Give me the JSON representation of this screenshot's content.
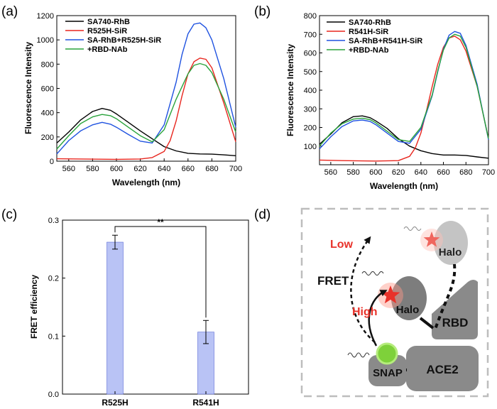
{
  "panel_labels": [
    "(a)",
    "(b)",
    "(c)",
    "(d)"
  ],
  "chart_data": [
    {
      "id": "a",
      "type": "line",
      "xlabel": "Wavelength (nm)",
      "ylabel": "Fluorescence Intensity",
      "xlim": [
        550,
        700
      ],
      "ylim": [
        0,
        1200
      ],
      "xticks": [
        560,
        580,
        600,
        620,
        640,
        660,
        680,
        700
      ],
      "yticks": [
        0,
        200,
        400,
        600,
        800,
        1000,
        1200
      ],
      "series": [
        {
          "name": "SA740-RhB",
          "color": "#000000",
          "x": [
            550,
            560,
            570,
            580,
            588,
            595,
            600,
            610,
            620,
            630,
            640,
            650,
            660,
            670,
            680,
            690,
            700
          ],
          "y": [
            150,
            240,
            340,
            410,
            435,
            420,
            390,
            320,
            250,
            185,
            120,
            85,
            65,
            60,
            58,
            52,
            45
          ]
        },
        {
          "name": "R525H-SiR",
          "color": "#e8261e",
          "x": [
            550,
            570,
            600,
            620,
            630,
            640,
            645,
            650,
            655,
            660,
            665,
            670,
            675,
            680,
            690,
            700
          ],
          "y": [
            20,
            18,
            15,
            18,
            30,
            80,
            170,
            330,
            540,
            720,
            820,
            850,
            840,
            770,
            480,
            160
          ]
        },
        {
          "name": "SA-RhB+R525H-SiR",
          "color": "#1f52e0",
          "x": [
            550,
            560,
            570,
            580,
            588,
            595,
            600,
            610,
            620,
            630,
            640,
            650,
            655,
            660,
            665,
            670,
            675,
            680,
            690,
            700
          ],
          "y": [
            60,
            170,
            250,
            300,
            320,
            305,
            280,
            220,
            165,
            150,
            300,
            650,
            880,
            1050,
            1130,
            1140,
            1100,
            1000,
            680,
            280
          ]
        },
        {
          "name": "+RBD-NAb",
          "color": "#2aa33c",
          "x": [
            550,
            560,
            570,
            580,
            588,
            595,
            600,
            610,
            620,
            630,
            640,
            650,
            660,
            665,
            670,
            675,
            680,
            690,
            700
          ],
          "y": [
            100,
            210,
            310,
            365,
            385,
            375,
            350,
            280,
            210,
            160,
            260,
            510,
            720,
            790,
            805,
            790,
            730,
            510,
            240
          ]
        }
      ]
    },
    {
      "id": "b",
      "type": "line",
      "xlabel": "Wavelength (nm)",
      "ylabel": "Fluorescence Intensity",
      "xlim": [
        550,
        700
      ],
      "ylim": [
        0,
        800
      ],
      "xticks": [
        560,
        580,
        600,
        620,
        640,
        660,
        680,
        700
      ],
      "yticks": [
        100,
        200,
        300,
        400,
        500,
        600,
        700,
        800
      ],
      "series": [
        {
          "name": "SA740-RhB",
          "color": "#000000",
          "x": [
            550,
            560,
            570,
            580,
            588,
            595,
            600,
            610,
            620,
            630,
            640,
            650,
            660,
            670,
            680,
            690,
            700
          ],
          "y": [
            110,
            165,
            225,
            258,
            262,
            252,
            235,
            195,
            140,
            100,
            75,
            60,
            52,
            52,
            50,
            42,
            35
          ]
        },
        {
          "name": "R541H-SiR",
          "color": "#e8261e",
          "x": [
            550,
            570,
            600,
            620,
            630,
            635,
            640,
            645,
            650,
            655,
            660,
            665,
            670,
            675,
            680,
            690,
            700
          ],
          "y": [
            25,
            22,
            20,
            22,
            45,
            90,
            170,
            290,
            420,
            540,
            630,
            680,
            690,
            670,
            610,
            420,
            140
          ]
        },
        {
          "name": "SA-RhB+R541H-SiR",
          "color": "#1f52e0",
          "x": [
            550,
            560,
            570,
            580,
            588,
            595,
            600,
            610,
            620,
            630,
            640,
            650,
            655,
            660,
            665,
            670,
            675,
            680,
            690,
            700
          ],
          "y": [
            85,
            150,
            205,
            235,
            240,
            232,
            215,
            170,
            125,
            115,
            190,
            370,
            500,
            620,
            695,
            715,
            705,
            640,
            430,
            135
          ]
        },
        {
          "name": "+RBD-NAb",
          "color": "#2aa33c",
          "x": [
            550,
            560,
            570,
            580,
            588,
            595,
            600,
            610,
            620,
            630,
            640,
            650,
            655,
            660,
            665,
            670,
            675,
            680,
            690,
            700
          ],
          "y": [
            100,
            170,
            220,
            245,
            250,
            242,
            225,
            180,
            135,
            125,
            200,
            375,
            505,
            615,
            680,
            700,
            690,
            630,
            420,
            140
          ]
        }
      ]
    },
    {
      "id": "c",
      "type": "bar",
      "ylabel": "FRET efficiency",
      "categories": [
        "R525H",
        "R541H"
      ],
      "values": [
        0.262,
        0.107
      ],
      "errors": [
        0.012,
        0.02
      ],
      "ylim": [
        0,
        0.3
      ],
      "yticks": [
        "0.0",
        "0.1",
        "0.2",
        "0.3"
      ],
      "significance": "**",
      "bar_color": "#b9c3f5"
    }
  ],
  "diagram": {
    "labels": {
      "low": "Low",
      "high": "High",
      "fret": "FRET",
      "halo_top": "Halo",
      "halo_bottom": "Halo",
      "rbd": "RBD",
      "snap": "SNAP",
      "ace2": "ACE2"
    },
    "colors": {
      "accent_red": "#e8322a",
      "grey": "#8a8a8a",
      "light_grey": "#bfbfbf",
      "green": "#7ed13a"
    }
  }
}
